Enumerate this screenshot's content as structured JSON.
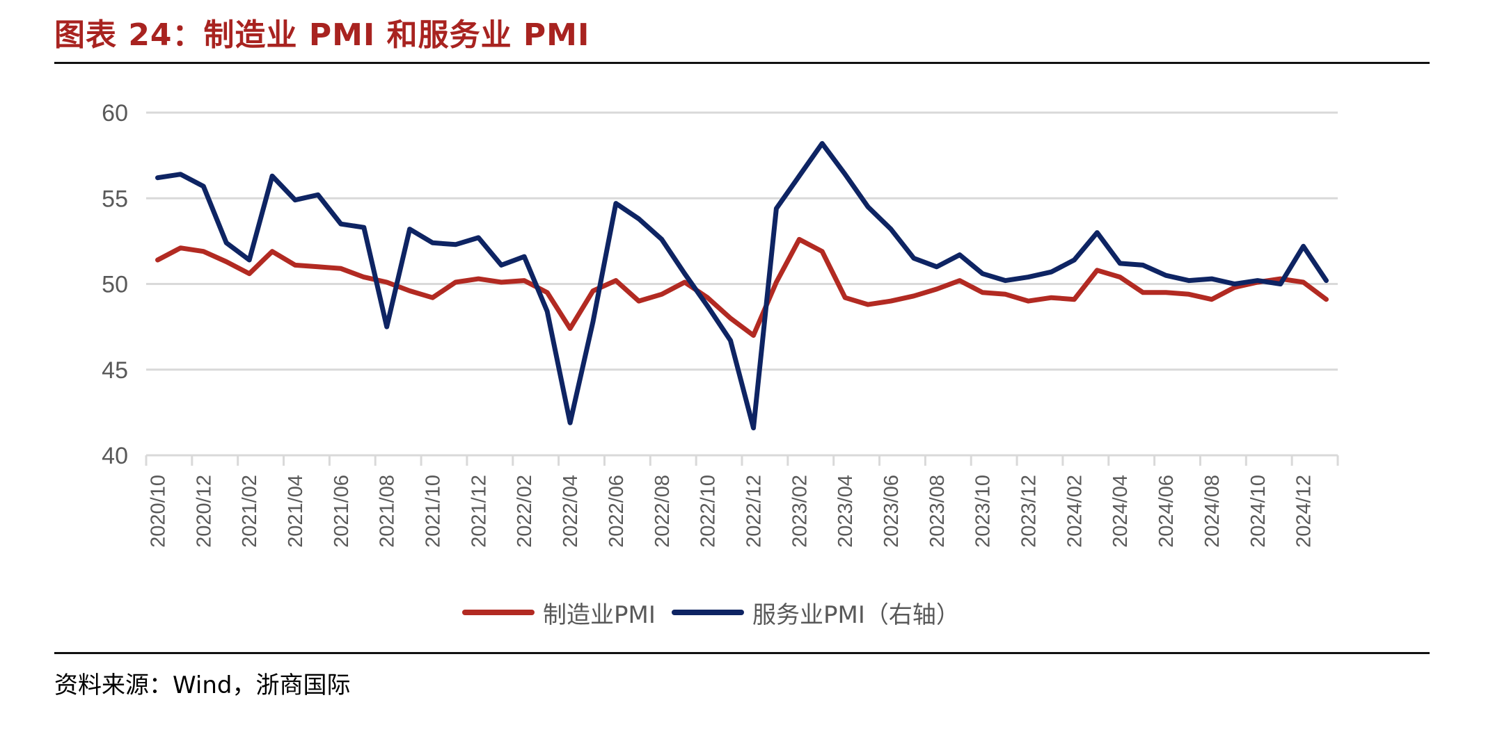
{
  "header": {
    "title": "图表 24：制造业 PMI 和服务业 PMI"
  },
  "footer": {
    "source": "资料来源：Wind，浙商国际"
  },
  "legend": {
    "manufacturing_label": "制造业PMI",
    "services_label": "服务业PMI（右轴）"
  },
  "colors": {
    "manufacturing": "#B22A22",
    "services": "#0E2463",
    "title": "#A82320",
    "grid": "#D9D9D9",
    "axis_text": "#595959"
  },
  "chart_data": {
    "type": "line",
    "title": "图表 24：制造业 PMI 和服务业 PMI",
    "xlabel": "",
    "ylabel": "",
    "ylim": [
      40,
      60
    ],
    "yticks": [
      40,
      45,
      50,
      55,
      60
    ],
    "grid": true,
    "legend_position": "bottom",
    "x_tick_labels": [
      "2020/10",
      "2020/12",
      "2021/02",
      "2021/04",
      "2021/06",
      "2021/08",
      "2021/10",
      "2021/12",
      "2022/02",
      "2022/04",
      "2022/06",
      "2022/08",
      "2022/10",
      "2022/12",
      "2023/02",
      "2023/04",
      "2023/06",
      "2023/08",
      "2023/10",
      "2023/12",
      "2024/02",
      "2024/04",
      "2024/06",
      "2024/08",
      "2024/10",
      "2024/12"
    ],
    "x": [
      "2020/10",
      "2020/11",
      "2020/12",
      "2021/01",
      "2021/02",
      "2021/03",
      "2021/04",
      "2021/05",
      "2021/06",
      "2021/07",
      "2021/08",
      "2021/09",
      "2021/10",
      "2021/11",
      "2021/12",
      "2022/01",
      "2022/02",
      "2022/03",
      "2022/04",
      "2022/05",
      "2022/06",
      "2022/07",
      "2022/08",
      "2022/09",
      "2022/10",
      "2022/11",
      "2022/12",
      "2023/01",
      "2023/02",
      "2023/03",
      "2023/04",
      "2023/05",
      "2023/06",
      "2023/07",
      "2023/08",
      "2023/09",
      "2023/10",
      "2023/11",
      "2023/12",
      "2024/01",
      "2024/02",
      "2024/03",
      "2024/04",
      "2024/05",
      "2024/06",
      "2024/07",
      "2024/08",
      "2024/09",
      "2024/10",
      "2024/11",
      "2024/12",
      "2025/01"
    ],
    "series": [
      {
        "name": "制造业PMI",
        "color": "#B22A22",
        "values": [
          51.4,
          52.1,
          51.9,
          51.3,
          50.6,
          51.9,
          51.1,
          51.0,
          50.9,
          50.4,
          50.1,
          49.6,
          49.2,
          50.1,
          50.3,
          50.1,
          50.2,
          49.5,
          47.4,
          49.6,
          50.2,
          49.0,
          49.4,
          50.1,
          49.2,
          48.0,
          47.0,
          50.1,
          52.6,
          51.9,
          49.2,
          48.8,
          49.0,
          49.3,
          49.7,
          50.2,
          49.5,
          49.4,
          49.0,
          49.2,
          49.1,
          50.8,
          50.4,
          49.5,
          49.5,
          49.4,
          49.1,
          49.8,
          50.1,
          50.3,
          50.1,
          49.1
        ]
      },
      {
        "name": "服务业PMI（右轴）",
        "color": "#0E2463",
        "values": [
          56.2,
          56.4,
          55.7,
          52.4,
          51.4,
          56.3,
          54.9,
          55.2,
          53.5,
          53.3,
          47.5,
          53.2,
          52.4,
          52.3,
          52.7,
          51.1,
          51.6,
          48.4,
          41.9,
          47.8,
          54.7,
          53.8,
          52.6,
          50.6,
          48.7,
          46.7,
          41.6,
          54.4,
          56.3,
          58.2,
          56.4,
          54.5,
          53.2,
          51.5,
          51.0,
          51.7,
          50.6,
          50.2,
          50.4,
          50.7,
          51.4,
          53.0,
          51.2,
          51.1,
          50.5,
          50.2,
          50.3,
          50.0,
          50.2,
          50.0,
          52.2,
          50.2
        ]
      }
    ]
  }
}
